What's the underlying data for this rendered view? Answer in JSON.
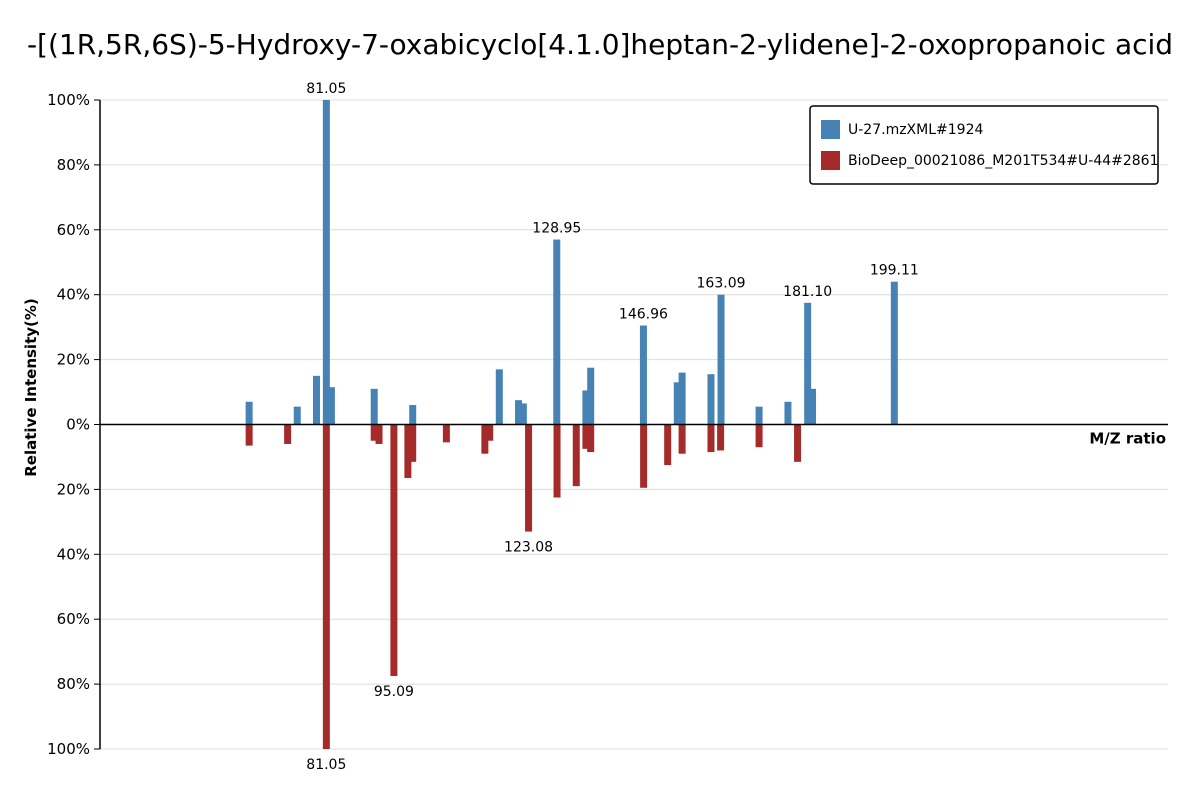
{
  "chart_data": {
    "type": "bar",
    "title": "-[(1R,5R,6S)-5-Hydroxy-7-oxabicyclo[4.1.0]heptan-2-ylidene]-2-oxopropanoic acid",
    "xlabel": "M/Z ratio",
    "ylabel": "Relative Intensity(%)",
    "ylim": [
      -100,
      100
    ],
    "xlim": [
      34,
      256
    ],
    "yticks": [
      {
        "value": 100,
        "label": "100%"
      },
      {
        "value": 80,
        "label": "80%"
      },
      {
        "value": 60,
        "label": "60%"
      },
      {
        "value": 40,
        "label": "40%"
      },
      {
        "value": 20,
        "label": "20%"
      },
      {
        "value": 0,
        "label": "0%"
      },
      {
        "value": -20,
        "label": "20%"
      },
      {
        "value": -40,
        "label": "40%"
      },
      {
        "value": -60,
        "label": "60%"
      },
      {
        "value": -80,
        "label": "80%"
      },
      {
        "value": -100,
        "label": "100%"
      }
    ],
    "grid": true,
    "legend_position": "top-right",
    "series": [
      {
        "name": "U-27.mzXML#1924",
        "color": "#4682b4",
        "direction": "up",
        "peaks": [
          {
            "mz": 65.0,
            "intensity": 7
          },
          {
            "mz": 75.0,
            "intensity": 5.5
          },
          {
            "mz": 79.0,
            "intensity": 15
          },
          {
            "mz": 81.05,
            "intensity": 100,
            "label": "81.05"
          },
          {
            "mz": 82.1,
            "intensity": 11.5
          },
          {
            "mz": 91.0,
            "intensity": 11
          },
          {
            "mz": 99.0,
            "intensity": 6
          },
          {
            "mz": 117.0,
            "intensity": 17
          },
          {
            "mz": 121.0,
            "intensity": 7.5
          },
          {
            "mz": 122.0,
            "intensity": 6.5
          },
          {
            "mz": 128.95,
            "intensity": 57,
            "label": "128.95"
          },
          {
            "mz": 135.0,
            "intensity": 10.5
          },
          {
            "mz": 136.0,
            "intensity": 17.5
          },
          {
            "mz": 146.96,
            "intensity": 30.5,
            "label": "146.96"
          },
          {
            "mz": 154.0,
            "intensity": 13
          },
          {
            "mz": 155.0,
            "intensity": 16
          },
          {
            "mz": 161.0,
            "intensity": 15.5
          },
          {
            "mz": 163.09,
            "intensity": 40,
            "label": "163.09"
          },
          {
            "mz": 171.0,
            "intensity": 5.5
          },
          {
            "mz": 177.0,
            "intensity": 7
          },
          {
            "mz": 181.1,
            "intensity": 37.5,
            "label": "181.10"
          },
          {
            "mz": 182.1,
            "intensity": 11
          },
          {
            "mz": 199.11,
            "intensity": 44,
            "label": "199.11"
          }
        ]
      },
      {
        "name": "BioDeep_00021086_M201T534#U-44#2861",
        "color": "#a52a2a",
        "direction": "down",
        "peaks": [
          {
            "mz": 65.0,
            "intensity": 6.5
          },
          {
            "mz": 73.0,
            "intensity": 6
          },
          {
            "mz": 81.05,
            "intensity": 100,
            "label": "81.05"
          },
          {
            "mz": 91.0,
            "intensity": 5
          },
          {
            "mz": 92.0,
            "intensity": 6
          },
          {
            "mz": 95.09,
            "intensity": 77.5,
            "label": "95.09"
          },
          {
            "mz": 98.0,
            "intensity": 16.5
          },
          {
            "mz": 99.0,
            "intensity": 11.5
          },
          {
            "mz": 106.0,
            "intensity": 5.5
          },
          {
            "mz": 114.0,
            "intensity": 9
          },
          {
            "mz": 115.0,
            "intensity": 5
          },
          {
            "mz": 123.08,
            "intensity": 33,
            "label": "123.08"
          },
          {
            "mz": 129.0,
            "intensity": 22.5
          },
          {
            "mz": 133.0,
            "intensity": 19
          },
          {
            "mz": 135.0,
            "intensity": 7.5
          },
          {
            "mz": 136.0,
            "intensity": 8.5
          },
          {
            "mz": 147.0,
            "intensity": 19.5
          },
          {
            "mz": 152.0,
            "intensity": 12.5
          },
          {
            "mz": 155.0,
            "intensity": 9
          },
          {
            "mz": 161.0,
            "intensity": 8.5
          },
          {
            "mz": 163.0,
            "intensity": 8
          },
          {
            "mz": 171.0,
            "intensity": 7
          },
          {
            "mz": 179.0,
            "intensity": 11.5
          }
        ]
      }
    ]
  }
}
